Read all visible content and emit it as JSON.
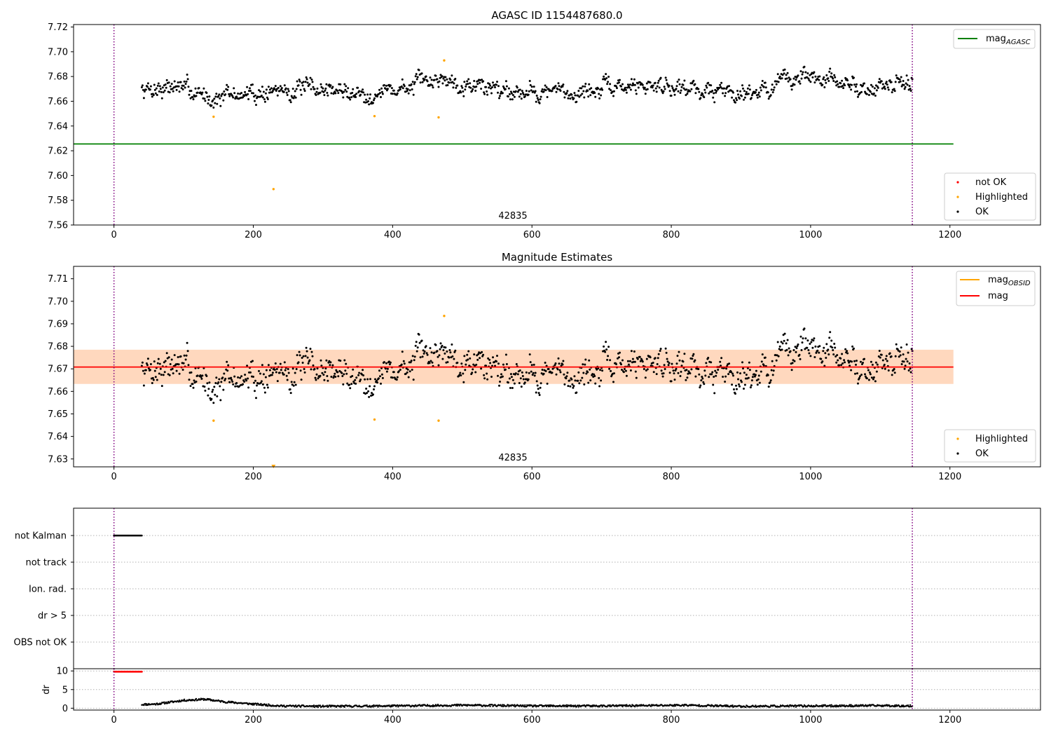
{
  "chart_data": [
    {
      "type": "scatter",
      "title": "AGASC ID 1154487680.0",
      "annotation": "42835",
      "xlim": [
        -58,
        1330
      ],
      "ylim": [
        7.56,
        7.722
      ],
      "xticks": [
        0,
        200,
        400,
        600,
        800,
        1000,
        1200
      ],
      "yticks": [
        "7.56",
        "7.58",
        "7.60",
        "7.62",
        "7.64",
        "7.66",
        "7.68",
        "7.70",
        "7.72"
      ],
      "vlines": [
        0,
        1146
      ],
      "hline": {
        "name": "mag_AGASC",
        "y": 7.6255,
        "x_range": [
          -58,
          1205
        ],
        "color": "#008000"
      },
      "legend_upper": [
        {
          "label": "mag",
          "sub": "AGASC",
          "color": "#008000"
        }
      ],
      "legend_lower": [
        {
          "label": "not OK",
          "color": "#ff0000"
        },
        {
          "label": "Highlighted",
          "color": "#ffa500"
        },
        {
          "label": "OK",
          "color": "#000000"
        }
      ],
      "ok_series": {
        "x_start": 40,
        "x_end": 1146,
        "trend": [
          [
            40,
            7.67
          ],
          [
            90,
            7.672
          ],
          [
            140,
            7.663
          ],
          [
            200,
            7.666
          ],
          [
            240,
            7.669
          ],
          [
            300,
            7.67
          ],
          [
            360,
            7.666
          ],
          [
            420,
            7.671
          ],
          [
            470,
            7.679
          ],
          [
            530,
            7.672
          ],
          [
            600,
            7.668
          ],
          [
            660,
            7.667
          ],
          [
            720,
            7.671
          ],
          [
            790,
            7.674
          ],
          [
            860,
            7.668
          ],
          [
            930,
            7.669
          ],
          [
            990,
            7.681
          ],
          [
            1040,
            7.674
          ],
          [
            1100,
            7.67
          ],
          [
            1146,
            7.676
          ]
        ],
        "scatter": 0.008
      },
      "highlighted": [
        {
          "x": 143,
          "y": 7.6475
        },
        {
          "x": 229,
          "y": 7.589
        },
        {
          "x": 374,
          "y": 7.648
        },
        {
          "x": 466,
          "y": 7.647
        },
        {
          "x": 474,
          "y": 7.693
        }
      ],
      "colors": {
        "ok": "#000000",
        "highlighted": "#ffa500",
        "vline": "#800080"
      }
    },
    {
      "type": "scatter",
      "title": "Magnitude Estimates",
      "annotation": "42835",
      "xlim": [
        -58,
        1330
      ],
      "ylim": [
        7.6265,
        7.7155
      ],
      "xticks": [
        0,
        200,
        400,
        600,
        800,
        1000,
        1200
      ],
      "yticks": [
        "7.63",
        "7.64",
        "7.65",
        "7.66",
        "7.67",
        "7.68",
        "7.69",
        "7.70",
        "7.71"
      ],
      "vlines": [
        0,
        1146
      ],
      "mag_line": {
        "y": 7.6708,
        "x_range": [
          -58,
          1205
        ],
        "color": "#ff0000"
      },
      "bands": [
        {
          "x_range": [
            -58,
            1205
          ],
          "y_range": [
            7.6633,
            7.6785
          ],
          "color": "#ffc0cb",
          "opacity": 0.45
        },
        {
          "x_range": [
            -58,
            1205
          ],
          "y_range": [
            7.6633,
            7.6785
          ],
          "color": "#ffa500",
          "opacity": 0.18
        }
      ],
      "legend_upper": [
        {
          "label": "mag",
          "sub": "OBSID",
          "color": "#ffa500"
        },
        {
          "label": "mag",
          "sub": "",
          "color": "#ff0000"
        }
      ],
      "legend_lower": [
        {
          "label": "Highlighted",
          "color": "#ffa500"
        },
        {
          "label": "OK",
          "color": "#000000"
        }
      ],
      "highlighted": [
        {
          "x": 143,
          "y": 7.647
        },
        {
          "x": 374,
          "y": 7.6475
        },
        {
          "x": 466,
          "y": 7.647
        },
        {
          "x": 474,
          "y": 7.6935
        }
      ],
      "clipped_marker": {
        "x": 229,
        "y": 7.6268
      },
      "colors": {
        "ok": "#000000",
        "highlighted": "#ffa500",
        "vline": "#800080"
      }
    },
    {
      "type": "scatter",
      "title": "",
      "xlim": [
        -58,
        1330
      ],
      "categories": [
        "not Kalman",
        "not track",
        "Ion. rad.",
        "dr > 5",
        "OBS not OK"
      ],
      "flags": [
        {
          "category": "not Kalman",
          "x_range": [
            0,
            40
          ]
        }
      ],
      "vlines": [
        0,
        1146
      ],
      "colors": {
        "flag": "#000000",
        "grid": "#b0b0b0",
        "vline": "#800080"
      }
    },
    {
      "type": "scatter",
      "title": "",
      "ylabel": "dr",
      "xlim": [
        -58,
        1330
      ],
      "ylim": [
        -0.5,
        10.6
      ],
      "xticks": [
        0,
        200,
        400,
        600,
        800,
        1000,
        1200
      ],
      "yticks": [
        "0",
        "5",
        "10"
      ],
      "vlines": [
        0,
        1146
      ],
      "not_ok": {
        "x_range": [
          0,
          40
        ],
        "y": 9.8
      },
      "dr_trend": [
        [
          40,
          1.0
        ],
        [
          60,
          1.1
        ],
        [
          80,
          1.6
        ],
        [
          100,
          2.1
        ],
        [
          130,
          2.4
        ],
        [
          160,
          1.7
        ],
        [
          200,
          1.1
        ],
        [
          240,
          0.6
        ],
        [
          300,
          0.5
        ],
        [
          400,
          0.6
        ],
        [
          500,
          0.8
        ],
        [
          600,
          0.6
        ],
        [
          700,
          0.6
        ],
        [
          820,
          0.8
        ],
        [
          900,
          0.5
        ],
        [
          1000,
          0.6
        ],
        [
          1100,
          0.7
        ],
        [
          1146,
          0.6
        ]
      ],
      "colors": {
        "ok": "#000000",
        "not_ok": "#ff0000",
        "vline": "#800080"
      }
    }
  ]
}
